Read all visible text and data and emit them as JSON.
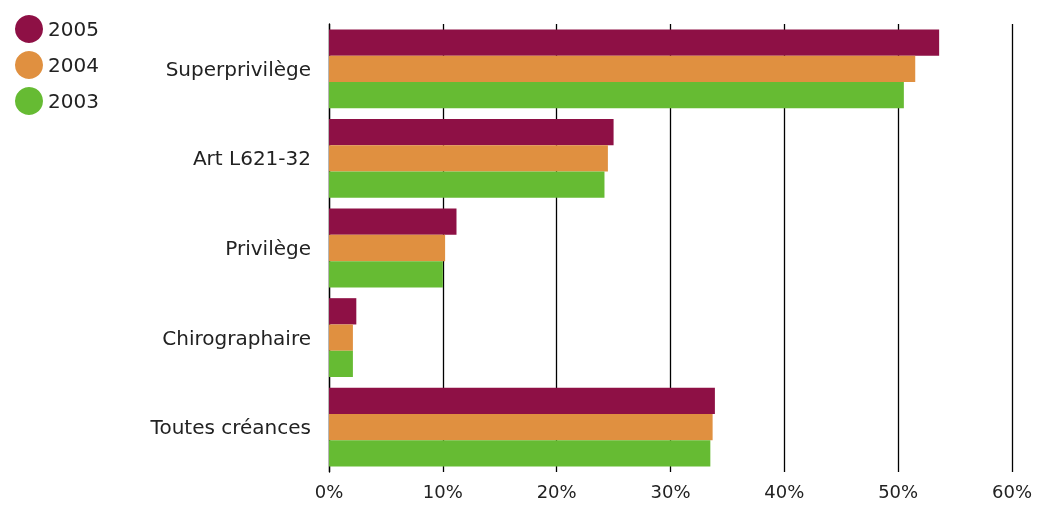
{
  "chart_data": {
    "type": "bar",
    "orientation": "horizontal",
    "categories": [
      "Superprivilège",
      "Art L621-32",
      "Privilège",
      "Chirographaire",
      "Toutes créances"
    ],
    "series": [
      {
        "name": "2005",
        "color": "#8e1045",
        "values": [
          53.6,
          25.0,
          11.2,
          2.4,
          33.9
        ]
      },
      {
        "name": "2004",
        "color": "#e09040",
        "values": [
          51.5,
          24.5,
          10.2,
          2.1,
          33.7
        ]
      },
      {
        "name": "2003",
        "color": "#66bb33",
        "values": [
          50.5,
          24.2,
          10.0,
          2.1,
          33.5
        ]
      }
    ],
    "xlim": [
      0,
      60
    ],
    "xticks": [
      {
        "value": 0,
        "label": "0%"
      },
      {
        "value": 10,
        "label": "10%"
      },
      {
        "value": 20,
        "label": "20%"
      },
      {
        "value": 30,
        "label": "30%"
      },
      {
        "value": 40,
        "label": "40%"
      },
      {
        "value": 50,
        "label": "50%"
      },
      {
        "value": 60,
        "label": "60%"
      }
    ],
    "grid": "x",
    "legend": "top left"
  }
}
